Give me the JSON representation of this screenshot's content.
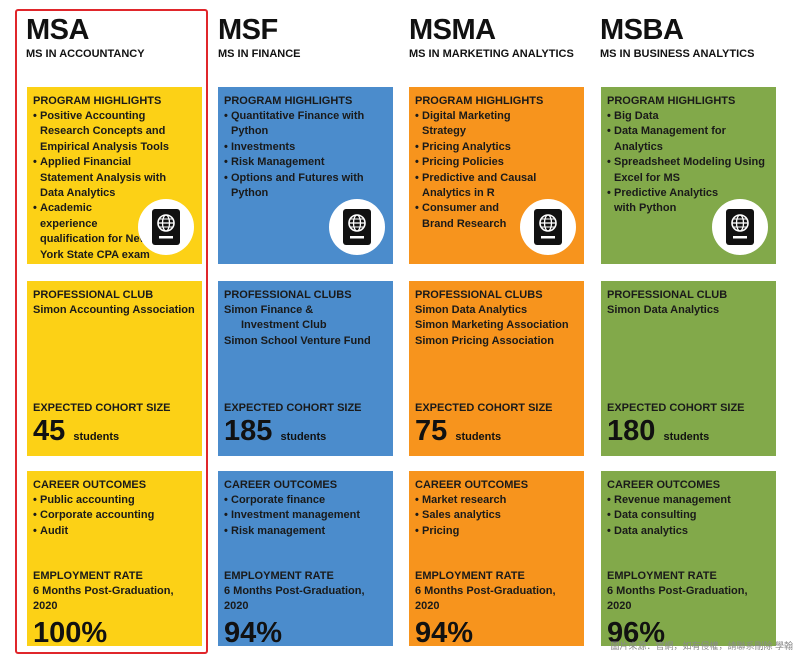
{
  "columns": [
    {
      "code": "MSA",
      "name": "MS IN ACCOUNTANCY",
      "highlights_title": "PROGRAM HIGHLIGHTS",
      "highlights": [
        "Positive Accounting Research Concepts and Empirical Analysis Tools",
        "Applied Financial Statement Analysis with Data Analytics",
        "Academic experience qualification for New York State CPA exam"
      ],
      "club_title": "PROFESSIONAL CLUB",
      "clubs": [
        "Simon Accounting Association"
      ],
      "cohort_title": "EXPECTED COHORT SIZE",
      "cohort_size": "45",
      "cohort_unit": "students",
      "career_title": "CAREER OUTCOMES",
      "careers": [
        "Public accounting",
        "Corporate accounting",
        "Audit"
      ],
      "employment_title": "EMPLOYMENT RATE",
      "employment_sub": "6 Months Post-Graduation, 2020",
      "employment_rate": "100%"
    },
    {
      "code": "MSF",
      "name": "MS IN FINANCE",
      "highlights_title": "PROGRAM HIGHLIGHTS",
      "highlights": [
        "Quantitative Finance with Python",
        "Investments",
        "Risk Management",
        "Options and Futures with Python"
      ],
      "club_title": "PROFESSIONAL CLUBS",
      "clubs": [
        "Simon Finance &",
        "Investment Club",
        "Simon School Venture Fund"
      ],
      "cohort_title": "EXPECTED COHORT SIZE",
      "cohort_size": "185",
      "cohort_unit": "students",
      "career_title": "CAREER OUTCOMES",
      "careers": [
        "Corporate finance",
        "Investment management",
        "Risk management"
      ],
      "employment_title": "EMPLOYMENT RATE",
      "employment_sub": "6 Months Post-Graduation, 2020",
      "employment_rate": "94%"
    },
    {
      "code": "MSMA",
      "name": "MS IN MARKETING ANALYTICS",
      "highlights_title": "PROGRAM HIGHLIGHTS",
      "highlights": [
        "Digital Marketing Strategy",
        "Pricing Analytics",
        "Pricing Policies",
        "Predictive and Causal Analytics in R",
        "Consumer and Brand Research"
      ],
      "club_title": "PROFESSIONAL CLUBS",
      "clubs": [
        "Simon Data Analytics",
        "Simon Marketing Association",
        "Simon Pricing Association"
      ],
      "cohort_title": "EXPECTED COHORT SIZE",
      "cohort_size": "75",
      "cohort_unit": "students",
      "career_title": "CAREER OUTCOMES",
      "careers": [
        "Market research",
        "Sales analytics",
        "Pricing"
      ],
      "employment_title": "EMPLOYMENT RATE",
      "employment_sub": "6 Months Post-Graduation, 2020",
      "employment_rate": "94%"
    },
    {
      "code": "MSBA",
      "name": "MS IN BUSINESS ANALYTICS",
      "highlights_title": "PROGRAM HIGHLIGHTS",
      "highlights": [
        "Big Data",
        "Data Management for Analytics",
        "Spreadsheet Modeling Using Excel for MS",
        "Predictive Analytics with Python"
      ],
      "club_title": "PROFESSIONAL CLUB",
      "clubs": [
        "Simon Data Analytics"
      ],
      "cohort_title": "EXPECTED COHORT SIZE",
      "cohort_size": "180",
      "cohort_unit": "students",
      "career_title": "CAREER OUTCOMES",
      "careers": [
        "Revenue management",
        "Data consulting",
        "Data analytics"
      ],
      "employment_title": "EMPLOYMENT RATE",
      "employment_sub": "6 Months Post-Graduation, 2020",
      "employment_rate": "96%"
    }
  ],
  "watermark": "圖片來源：官網，如有侵權，請聯系刪除 學翰",
  "colors": {
    "yellow": "#fcd116",
    "blue": "#4b8ccc",
    "orange": "#f7941d",
    "green": "#82a94a",
    "highlight_border": "#e0262b"
  }
}
